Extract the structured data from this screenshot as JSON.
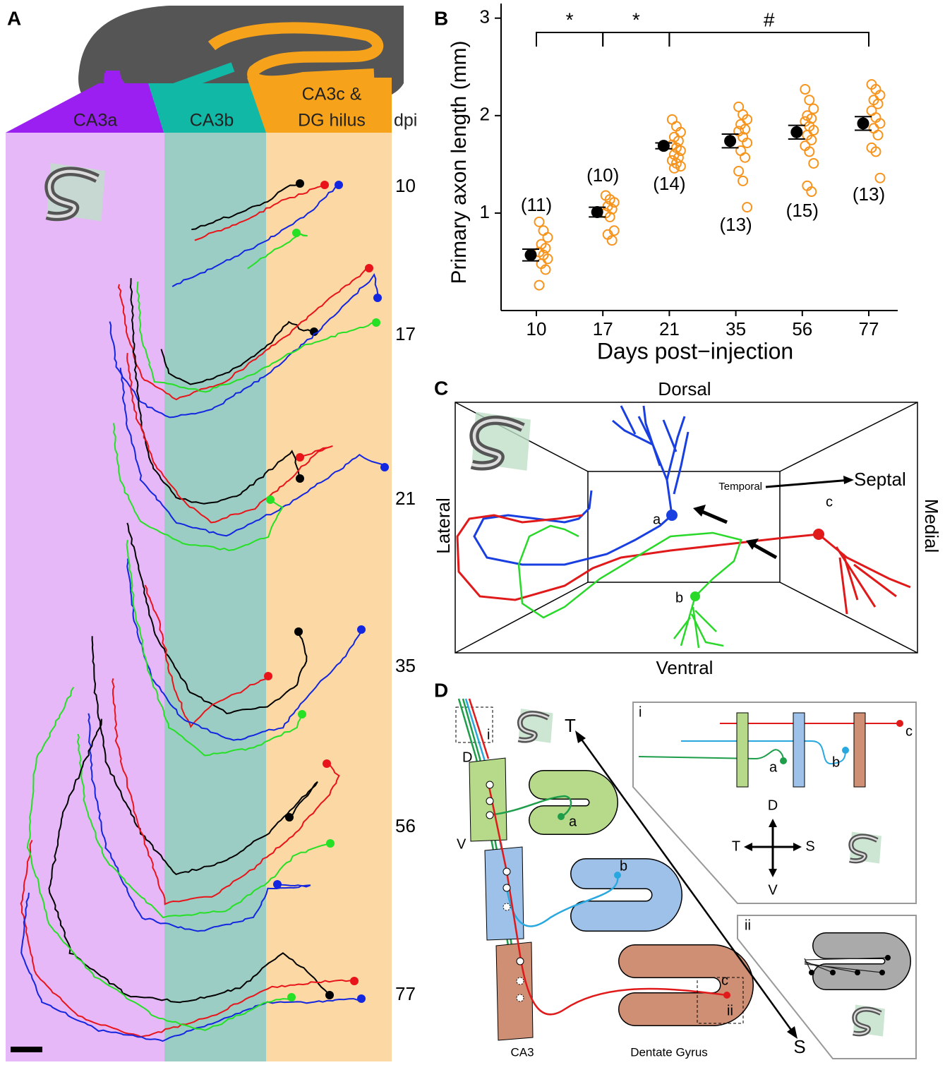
{
  "panel_a": {
    "label": "A",
    "regions": [
      "CA3a",
      "CA3b"
    ],
    "region_c": [
      "CA3c &",
      "DG hilus"
    ],
    "axis_label": "dpi",
    "timepoints": [
      "10",
      "17",
      "21",
      "35",
      "56",
      "77"
    ]
  },
  "chart_data": {
    "type": "scatter",
    "panel_label": "B",
    "ylabel": "Primary axon length (mm)",
    "xlabel": "Days post−injection",
    "categories": [
      "10",
      "17",
      "21",
      "35",
      "56",
      "77"
    ],
    "values": [
      0.57,
      1.01,
      1.69,
      1.74,
      1.83,
      1.92
    ],
    "errors": [
      0.06,
      0.05,
      0.03,
      0.07,
      0.07,
      0.07
    ],
    "points": [
      [
        0.91,
        0.82,
        0.75,
        0.68,
        0.64,
        0.6,
        0.57,
        0.53,
        0.48,
        0.42,
        0.26
      ],
      [
        1.18,
        1.14,
        1.11,
        1.07,
        1.04,
        1.0,
        0.96,
        0.82,
        0.78,
        0.72
      ],
      [
        1.96,
        1.89,
        1.83,
        1.78,
        1.74,
        1.7,
        1.67,
        1.64,
        1.6,
        1.57,
        1.54,
        1.51,
        1.48,
        1.46
      ],
      [
        2.09,
        2.01,
        1.96,
        1.91,
        1.86,
        1.84,
        1.78,
        1.72,
        1.64,
        1.57,
        1.43,
        1.33,
        1.06
      ],
      [
        2.27,
        2.16,
        2.07,
        2.0,
        1.97,
        1.94,
        1.89,
        1.85,
        1.8,
        1.75,
        1.69,
        1.63,
        1.51,
        1.28,
        1.22
      ],
      [
        2.32,
        2.27,
        2.21,
        2.16,
        2.12,
        2.05,
        1.98,
        1.92,
        1.87,
        1.8,
        1.67,
        1.63,
        1.36
      ]
    ],
    "n_labels": [
      "(11)",
      "(10)",
      "(14)",
      "(13)",
      "(15)",
      "(13)"
    ],
    "ylim": [
      0,
      3.15
    ],
    "yticks": [
      1,
      2,
      3
    ],
    "mean_color": "#000000",
    "point_color": "#f7941d",
    "brackets": [
      {
        "from": "10",
        "to": "17",
        "label": "*"
      },
      {
        "from": "17",
        "to": "21",
        "label": "*"
      },
      {
        "from": "21",
        "to": "77",
        "label": "#"
      }
    ]
  },
  "panel_c": {
    "label": "C",
    "dorsal": "Dorsal",
    "ventral": "Ventral",
    "lateral": "Lateral",
    "medial": "Medial",
    "temporal": "Temporal",
    "septal": "Septal",
    "cells": [
      "a",
      "b",
      "c"
    ]
  },
  "panel_d": {
    "label": "D",
    "t": "T",
    "s": "S",
    "d": "D",
    "v": "V",
    "cells": [
      "a",
      "b",
      "c"
    ],
    "inset_i": "i",
    "inset_ii": "ii",
    "ca3": "CA3",
    "dg": "Dentate Gyrus",
    "inset": {
      "label": "i",
      "cells": [
        "a",
        "b",
        "c"
      ],
      "d": "D",
      "t": "T",
      "s": "S",
      "v": "V"
    },
    "inset2": {
      "label": "ii"
    }
  }
}
